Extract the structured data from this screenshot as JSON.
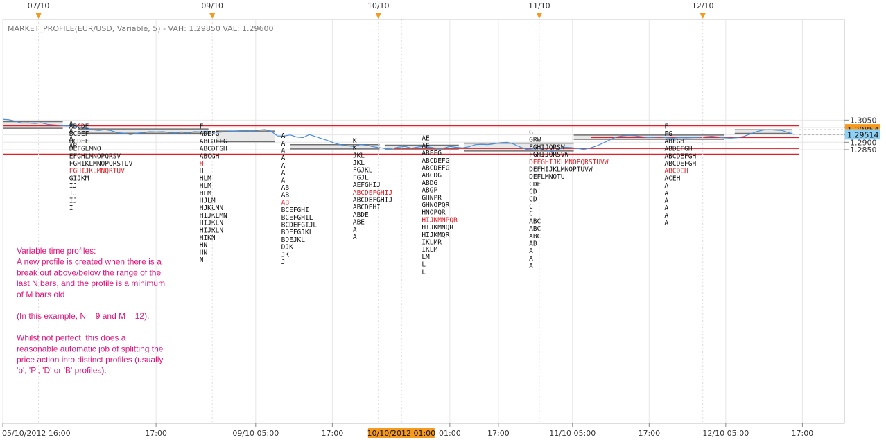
{
  "header": {
    "indicator_title": "MARKET_PROFILE(EUR/USD, Variable, 5) -  VAH: 1.29850  VAL: 1.29600"
  },
  "annotation": {
    "lines": [
      "Variable time profiles:",
      "A new profile is created when there is a",
      "break out above/below the range of the",
      "last N bars, and the profile is a minimum",
      "of M bars old",
      "",
      "(In this example, N = 9 and M = 12).",
      "",
      "Whilst not perfect, this does a",
      "reasonable automatic job of splitting the",
      "price action into distinct profiles (usually",
      "'b', 'P', 'D' or 'B' profiles)."
    ]
  },
  "colors": {
    "price_line": "#4a8fd8",
    "level_lines": "#e31e24",
    "value_area_fill": "#e8e8e8",
    "value_area_edge": "#707070",
    "poc_text": "#e31e24",
    "annotation_text": "#e0147a",
    "tag_orange": "#f59a1e",
    "tag_blue": "#8fd1f5",
    "grid": "#e6e6e6"
  },
  "chart_data": {
    "type": "line",
    "symbol": "EUR/USD",
    "y_axis": {
      "ticks": [
        1.305,
        1.3,
        1.295,
        1.29,
        1.285
      ],
      "tick_labels": [
        "1.3050",
        "1.3000",
        "1.2950",
        "1.2900",
        "1.2850"
      ],
      "tags": [
        {
          "value": 1.29854,
          "label": "1.29854",
          "style": "orange"
        },
        {
          "value": 1.29514,
          "label": "1.29514",
          "style": "blue"
        }
      ]
    },
    "x_axis": {
      "labels": [
        {
          "t": 0,
          "label": "05/10/2012 16:00"
        },
        {
          "t": 6,
          "label": "17:00"
        },
        {
          "t": 9.9,
          "label": "09/10 05:00"
        },
        {
          "t": 12.9,
          "label": "17:00"
        },
        {
          "t": 17.5,
          "label": "01:00",
          "muted": true
        },
        {
          "t": 19.4,
          "label": "17:00"
        },
        {
          "t": 22.3,
          "label": "11/10 05:00"
        },
        {
          "t": 25.3,
          "label": "17:00"
        },
        {
          "t": 28.3,
          "label": "12/10 05:00"
        },
        {
          "t": 31.3,
          "label": "17:00"
        }
      ],
      "cursor": {
        "t": 15.6,
        "label": "10/10/2012 01:00"
      }
    },
    "date_markers": [
      {
        "t": 1.4,
        "label": "07/10"
      },
      {
        "t": 8.2,
        "label": "09/10"
      },
      {
        "t": 14.7,
        "label": "10/10"
      },
      {
        "t": 21.0,
        "label": "11/10"
      },
      {
        "t": 27.4,
        "label": "12/10"
      }
    ],
    "horizontal_levels": [
      1.3012,
      1.2859,
      1.2933,
      1.2819
    ],
    "price_series": [
      [
        0.0,
        1.3056
      ],
      [
        0.25,
        1.3052
      ],
      [
        0.5,
        1.3042
      ],
      [
        0.75,
        1.303
      ],
      [
        1.0,
        1.3031
      ],
      [
        1.25,
        1.3027
      ],
      [
        1.5,
        1.3032
      ],
      [
        1.75,
        1.3022
      ],
      [
        2.0,
        1.3018
      ],
      [
        2.25,
        1.3014
      ],
      [
        2.5,
        1.301
      ],
      [
        2.75,
        1.3012
      ],
      [
        3.0,
        1.3003
      ],
      [
        3.25,
        1.2993
      ],
      [
        3.5,
        1.2985
      ],
      [
        3.75,
        1.298
      ],
      [
        4.0,
        1.2985
      ],
      [
        4.25,
        1.2978
      ],
      [
        4.5,
        1.2965
      ],
      [
        4.75,
        1.2962
      ],
      [
        5.0,
        1.2952
      ],
      [
        5.25,
        1.2962
      ],
      [
        5.5,
        1.2966
      ],
      [
        5.75,
        1.2972
      ],
      [
        6.0,
        1.297
      ],
      [
        6.25,
        1.2972
      ],
      [
        6.5,
        1.2968
      ],
      [
        6.75,
        1.2964
      ],
      [
        7.0,
        1.297
      ],
      [
        7.25,
        1.2965
      ],
      [
        7.5,
        1.2972
      ],
      [
        7.75,
        1.297
      ],
      [
        8.0,
        1.2975
      ],
      [
        8.25,
        1.2968
      ],
      [
        8.5,
        1.2968
      ],
      [
        8.75,
        1.2972
      ],
      [
        9.0,
        1.2976
      ],
      [
        9.25,
        1.2978
      ],
      [
        9.5,
        1.298
      ],
      [
        9.75,
        1.2978
      ],
      [
        10.0,
        1.2982
      ],
      [
        10.25,
        1.2986
      ],
      [
        10.5,
        1.2976
      ],
      [
        10.75,
        1.2943
      ],
      [
        11.0,
        1.2942
      ],
      [
        11.25,
        1.295
      ],
      [
        11.5,
        1.2936
      ],
      [
        11.75,
        1.2932
      ],
      [
        12.0,
        1.2952
      ],
      [
        12.25,
        1.2938
      ],
      [
        12.5,
        1.2924
      ],
      [
        12.75,
        1.291
      ],
      [
        13.0,
        1.2893
      ],
      [
        13.25,
        1.2882
      ],
      [
        13.5,
        1.2876
      ],
      [
        13.75,
        1.2872
      ],
      [
        14.0,
        1.2884
      ],
      [
        14.25,
        1.288
      ],
      [
        14.5,
        1.287
      ],
      [
        14.75,
        1.2864
      ],
      [
        15.0,
        1.2856
      ],
      [
        15.25,
        1.2858
      ],
      [
        15.5,
        1.2868
      ],
      [
        15.75,
        1.2872
      ],
      [
        16.0,
        1.286
      ],
      [
        16.25,
        1.2868
      ],
      [
        16.5,
        1.2874
      ],
      [
        16.75,
        1.2866
      ],
      [
        17.0,
        1.2858
      ],
      [
        17.25,
        1.286
      ],
      [
        17.5,
        1.2872
      ],
      [
        17.75,
        1.2866
      ],
      [
        18.0,
        1.2862
      ],
      [
        18.25,
        1.287
      ],
      [
        18.5,
        1.2884
      ],
      [
        18.75,
        1.2886
      ],
      [
        19.0,
        1.2884
      ],
      [
        19.25,
        1.289
      ],
      [
        19.5,
        1.2897
      ],
      [
        19.75,
        1.29
      ],
      [
        20.0,
        1.2888
      ],
      [
        20.25,
        1.2868
      ],
      [
        20.5,
        1.2852
      ],
      [
        20.75,
        1.2855
      ],
      [
        21.0,
        1.286
      ],
      [
        21.25,
        1.2846
      ],
      [
        21.5,
        1.2836
      ],
      [
        21.75,
        1.2852
      ],
      [
        22.0,
        1.2866
      ],
      [
        22.25,
        1.2864
      ],
      [
        22.5,
        1.2858
      ],
      [
        22.75,
        1.2852
      ],
      [
        23.0,
        1.2862
      ],
      [
        23.25,
        1.2876
      ],
      [
        23.5,
        1.2895
      ],
      [
        23.75,
        1.2915
      ],
      [
        24.0,
        1.2935
      ],
      [
        24.25,
        1.2943
      ],
      [
        24.5,
        1.2946
      ],
      [
        24.75,
        1.2944
      ],
      [
        25.0,
        1.2938
      ],
      [
        25.25,
        1.2932
      ],
      [
        25.5,
        1.2934
      ],
      [
        25.75,
        1.2936
      ],
      [
        26.0,
        1.293
      ],
      [
        26.25,
        1.2928
      ],
      [
        26.5,
        1.2932
      ],
      [
        26.75,
        1.293
      ],
      [
        27.0,
        1.2932
      ],
      [
        27.25,
        1.2934
      ],
      [
        27.5,
        1.2937
      ],
      [
        27.75,
        1.2941
      ],
      [
        28.0,
        1.2936
      ],
      [
        28.25,
        1.293
      ],
      [
        28.5,
        1.2928
      ],
      [
        28.75,
        1.2931
      ],
      [
        29.0,
        1.294
      ],
      [
        29.25,
        1.2955
      ],
      [
        29.5,
        1.2972
      ],
      [
        29.75,
        1.2982
      ],
      [
        30.0,
        1.2986
      ],
      [
        30.25,
        1.2982
      ],
      [
        30.5,
        1.298
      ],
      [
        30.75,
        1.2966
      ],
      [
        31.0,
        1.2952
      ]
    ],
    "value_areas": [
      {
        "t0": 0.0,
        "t1": 2.35,
        "vah": 1.304,
        "val": 1.2995
      },
      {
        "t0": 2.95,
        "t1": 8.05,
        "vah": 1.299,
        "val": 1.2961
      },
      {
        "t0": 8.35,
        "t1": 10.65,
        "vah": 1.2976,
        "val": 1.2904
      },
      {
        "t0": 11.25,
        "t1": 14.75,
        "vah": 1.2884,
        "val": 1.2855
      },
      {
        "t0": 14.95,
        "t1": 17.85,
        "vah": 1.288,
        "val": 1.285
      },
      {
        "t0": 18.05,
        "t1": 22.35,
        "vah": 1.2894,
        "val": 1.2841
      },
      {
        "t0": 22.35,
        "t1": 28.25,
        "vah": 1.2949,
        "val": 1.292
      },
      {
        "t0": 28.65,
        "t1": 30.9,
        "vah": 1.2985,
        "val": 1.296
      }
    ],
    "profiles": [
      {
        "t": 2.6,
        "top": 1.3012,
        "poc": -1,
        "rows": [
          "A",
          "A",
          "A",
          "AB"
        ]
      },
      {
        "t": 2.6,
        "top": 1.2993,
        "poc": 6,
        "rows": [
          "ABCDE",
          "BCDEF",
          "BCDEF",
          "DEFGLMNO",
          "EFGHLMNOPQRSV",
          "FGHIKLMNOPQRSTUV",
          "FGHIJKLMNQRTUV",
          "GIJKM",
          "IJ",
          "IJ",
          "IJ",
          "I"
        ]
      },
      {
        "t": 7.7,
        "top": 1.2993,
        "poc": 5,
        "rows": [
          "F",
          "ADEFG",
          "ABCDEFG",
          "ABCDFGH",
          "ABCGH",
          "H",
          "H",
          "HLM",
          "HLM",
          "HLM",
          "HJLM",
          "HJKLMN",
          "HIJKLMN",
          "HIJKLN",
          "HIJKLN",
          "HIKN",
          "HN",
          "HN",
          "N"
        ]
      },
      {
        "t": 10.9,
        "top": 1.2929,
        "poc": 9,
        "rows": [
          "A",
          "A",
          "A",
          "A",
          "A",
          "A",
          "A",
          "AB",
          "AB",
          "AB",
          "BCEFGHI",
          "BCEFGHIL",
          "BCDEFGIJL",
          "BDEFGJKL",
          "BDEJKL",
          "DJK",
          "JK",
          "J"
        ]
      },
      {
        "t": 13.7,
        "top": 1.2897,
        "poc": 7,
        "rows": [
          "K",
          "K",
          "JKL",
          "JKL",
          "FGJKL",
          "FGJL",
          "AEFGHIJ",
          "ABCDEFGHIJ",
          "ABCDEFGHIJ",
          "ABCDEHI",
          "ABDE",
          "ABE",
          "A",
          "A"
        ]
      },
      {
        "t": 16.4,
        "top": 1.2912,
        "poc": 11,
        "rows": [
          "AE",
          "AE",
          "ABEFG",
          "ABCDEFG",
          "ABCDEFG",
          "ABCDG",
          "ABDG",
          "ABGP",
          "GHNPR",
          "GHNOPQR",
          "HNOPQR",
          "HIJKMNPQR",
          "HIJKMNQR",
          "HIJKMQR",
          "IKLMR",
          "IKLM",
          "LM",
          "L",
          "L"
        ]
      },
      {
        "t": 20.6,
        "top": 1.2953,
        "poc": 4,
        "rows": [
          "G",
          "GRW",
          "FGHIJQRSW",
          "FGHIJQRSVW",
          "DEFGHIJKLMNOPQRSTUVW",
          "DEFHIJKLMNOPTUVW",
          "DEFLMNOTU",
          "CDE",
          "CD",
          "CD",
          "C",
          "C",
          "ABC",
          "ABC",
          "ABC",
          "AB",
          "A",
          "A",
          "A"
        ]
      },
      {
        "t": 25.9,
        "top": 1.2993,
        "poc": 6,
        "rows": [
          "F",
          "FG",
          "ABFGH",
          "ABDEFGH",
          "ABCDEFGH",
          "ABCDEFGH",
          "ABCDEH",
          "ACEH",
          "A",
          "A",
          "A",
          "A",
          "A",
          "A"
        ]
      }
    ]
  }
}
